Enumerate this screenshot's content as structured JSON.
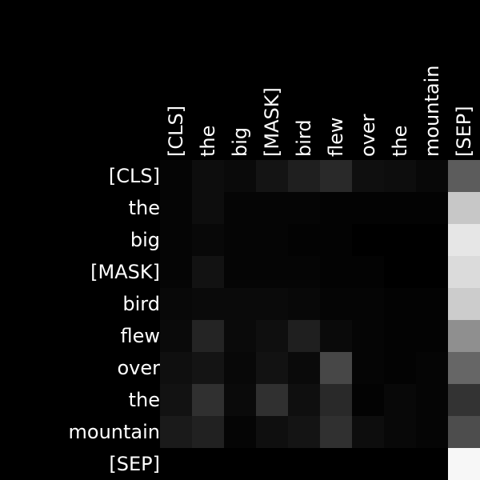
{
  "chart_data": {
    "type": "heatmap",
    "title": "",
    "xlabel": "",
    "ylabel": "",
    "colormap": "grayscale (black = 0, white = max)",
    "x_labels": [
      "[CLS]",
      "the",
      "big",
      "[MASK]",
      "bird",
      "flew",
      "over",
      "the",
      "mountain",
      "[SEP]"
    ],
    "y_labels": [
      "[CLS]",
      "the",
      "big",
      "[MASK]",
      "bird",
      "flew",
      "over",
      "the",
      "mountain",
      "[SEP]"
    ],
    "values": [
      [
        0.02,
        0.05,
        0.04,
        0.08,
        0.12,
        0.16,
        0.06,
        0.05,
        0.03,
        0.36
      ],
      [
        0.02,
        0.05,
        0.02,
        0.02,
        0.02,
        0.01,
        0.01,
        0.01,
        0.01,
        0.78
      ],
      [
        0.02,
        0.03,
        0.02,
        0.02,
        0.01,
        0.01,
        0.0,
        0.0,
        0.0,
        0.9
      ],
      [
        0.02,
        0.07,
        0.02,
        0.02,
        0.02,
        0.01,
        0.01,
        0.0,
        0.0,
        0.86
      ],
      [
        0.03,
        0.04,
        0.04,
        0.04,
        0.03,
        0.02,
        0.02,
        0.01,
        0.01,
        0.8
      ],
      [
        0.04,
        0.14,
        0.04,
        0.06,
        0.12,
        0.04,
        0.02,
        0.01,
        0.01,
        0.56
      ],
      [
        0.06,
        0.08,
        0.03,
        0.07,
        0.04,
        0.28,
        0.02,
        0.01,
        0.02,
        0.4
      ],
      [
        0.07,
        0.19,
        0.04,
        0.19,
        0.06,
        0.16,
        0.01,
        0.03,
        0.02,
        0.2
      ],
      [
        0.1,
        0.13,
        0.02,
        0.06,
        0.08,
        0.19,
        0.05,
        0.03,
        0.02,
        0.3
      ],
      [
        0.0,
        0.0,
        0.0,
        0.0,
        0.0,
        0.0,
        0.0,
        0.0,
        0.0,
        0.97
      ]
    ]
  }
}
